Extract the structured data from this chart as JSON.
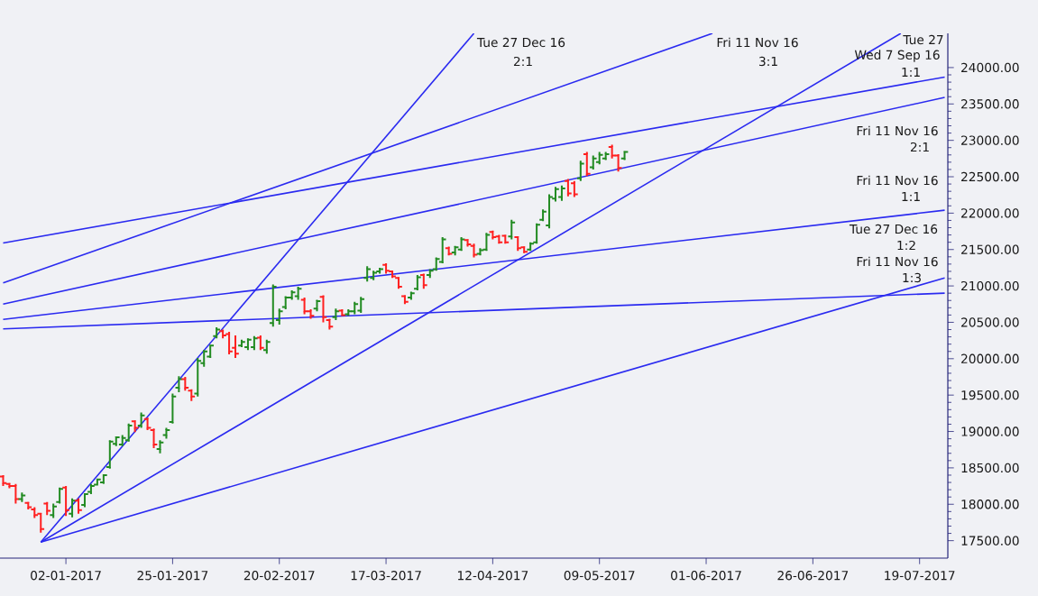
{
  "chart_data": {
    "type": "candlestick",
    "categories": [
      null,
      null,
      null,
      null,
      null,
      null,
      null,
      null,
      null,
      null,
      "02-01-2017",
      null,
      null,
      null,
      null,
      null,
      null,
      null,
      null,
      null,
      null,
      null,
      null,
      null,
      null,
      null,
      null,
      "25-01-2017",
      null,
      null,
      null,
      null,
      null,
      null,
      null,
      null,
      null,
      null,
      null,
      null,
      null,
      null,
      null,
      null,
      "20-02-2017",
      null,
      null,
      null,
      null,
      null,
      null,
      null,
      null,
      null,
      null,
      null,
      null,
      null,
      null,
      null,
      null,
      "17-03-2017",
      null,
      null,
      null,
      null,
      null,
      null,
      null,
      null,
      null,
      null,
      null,
      null,
      null,
      null,
      null,
      null,
      "12-04-2017",
      null,
      null,
      null,
      null,
      null,
      null,
      null,
      null,
      null,
      null,
      null,
      null,
      null,
      null,
      null,
      null,
      "09-05-2017",
      null,
      null,
      null,
      null,
      null,
      null,
      null,
      null,
      null,
      null,
      null,
      null,
      null,
      null,
      null,
      null,
      "01-06-2017",
      null,
      null,
      null,
      null,
      null,
      null,
      null,
      null,
      null,
      null,
      null,
      null,
      null,
      null,
      null,
      null,
      "26-06-2017",
      null,
      null,
      null,
      null,
      null,
      null,
      null,
      null,
      null,
      null,
      null,
      null,
      null,
      null,
      null,
      null,
      "19-07-2017",
      null,
      null,
      null,
      null
    ],
    "ohlc": [
      [
        18380,
        18400,
        18250,
        18290
      ],
      [
        18280,
        18290,
        18220,
        18250
      ],
      [
        18250,
        18280,
        18010,
        18070
      ],
      [
        18070,
        18160,
        18030,
        18120
      ],
      [
        18020,
        18030,
        17930,
        17960
      ],
      [
        17930,
        17960,
        17810,
        17850
      ],
      [
        17870,
        17880,
        17610,
        17660
      ],
      [
        18010,
        18030,
        17850,
        17910
      ],
      [
        17850,
        18010,
        17810,
        17970
      ],
      [
        18030,
        18230,
        18010,
        18210
      ],
      [
        18230,
        18250,
        17840,
        17920
      ],
      [
        17870,
        18080,
        17820,
        18050
      ],
      [
        18050,
        18080,
        17870,
        17920
      ],
      [
        17990,
        18150,
        17960,
        18140
      ],
      [
        18170,
        18280,
        18140,
        18250
      ],
      [
        18270,
        18340,
        18270,
        18340
      ],
      [
        18300,
        18400,
        18280,
        18400
      ],
      [
        18510,
        18880,
        18490,
        18860
      ],
      [
        18830,
        18930,
        18800,
        18920
      ],
      [
        18820,
        18950,
        18800,
        18910
      ],
      [
        18880,
        19110,
        18860,
        19080
      ],
      [
        19140,
        19150,
        18990,
        19050
      ],
      [
        19080,
        19260,
        19050,
        19220
      ],
      [
        19170,
        19190,
        19020,
        19050
      ],
      [
        19020,
        19040,
        18770,
        18820
      ],
      [
        18760,
        18880,
        18700,
        18850
      ],
      [
        18950,
        19050,
        18900,
        19020
      ],
      [
        19130,
        19520,
        19110,
        19480
      ],
      [
        19600,
        19760,
        19540,
        19720
      ],
      [
        19720,
        19750,
        19560,
        19600
      ],
      [
        19560,
        19580,
        19420,
        19480
      ],
      [
        19520,
        20010,
        19480,
        19970
      ],
      [
        19940,
        20120,
        19890,
        20100
      ],
      [
        20030,
        20190,
        20010,
        20180
      ],
      [
        20310,
        20430,
        20280,
        20400
      ],
      [
        20380,
        20400,
        20280,
        20320
      ],
      [
        20340,
        20370,
        20060,
        20100
      ],
      [
        20150,
        20320,
        20010,
        20070
      ],
      [
        20180,
        20260,
        20160,
        20230
      ],
      [
        20160,
        20280,
        20120,
        20260
      ],
      [
        20160,
        20310,
        20120,
        20280
      ],
      [
        20290,
        20320,
        20120,
        20150
      ],
      [
        20120,
        20260,
        20070,
        20230
      ],
      [
        20490,
        21020,
        20440,
        20990
      ],
      [
        20530,
        20690,
        20470,
        20650
      ],
      [
        20710,
        20860,
        20680,
        20840
      ],
      [
        20840,
        20940,
        20810,
        20910
      ],
      [
        20860,
        20990,
        20810,
        20960
      ],
      [
        20810,
        20840,
        20610,
        20650
      ],
      [
        20650,
        20680,
        20550,
        20590
      ],
      [
        20690,
        20810,
        20650,
        20790
      ],
      [
        20850,
        20870,
        20500,
        20570
      ],
      [
        20530,
        20550,
        20400,
        20440
      ],
      [
        20570,
        20690,
        20530,
        20650
      ],
      [
        20660,
        20680,
        20590,
        20600
      ],
      [
        20610,
        20680,
        20590,
        20650
      ],
      [
        20650,
        20780,
        20610,
        20750
      ],
      [
        20660,
        20850,
        20630,
        20820
      ],
      [
        21110,
        21270,
        21060,
        21230
      ],
      [
        21110,
        21210,
        21080,
        21180
      ],
      [
        21200,
        21250,
        21170,
        21230
      ],
      [
        21290,
        21310,
        21170,
        21210
      ],
      [
        21200,
        21210,
        21110,
        21130
      ],
      [
        21110,
        21120,
        20960,
        20990
      ],
      [
        20860,
        20870,
        20750,
        20780
      ],
      [
        20840,
        20920,
        20810,
        20900
      ],
      [
        20960,
        21150,
        20940,
        21120
      ],
      [
        21150,
        21170,
        20960,
        21010
      ],
      [
        21150,
        21230,
        21110,
        21210
      ],
      [
        21230,
        21390,
        21210,
        21370
      ],
      [
        21330,
        21670,
        21310,
        21640
      ],
      [
        21520,
        21540,
        21420,
        21440
      ],
      [
        21460,
        21550,
        21420,
        21530
      ],
      [
        21500,
        21670,
        21480,
        21640
      ],
      [
        21630,
        21640,
        21540,
        21570
      ],
      [
        21550,
        21580,
        21390,
        21430
      ],
      [
        21440,
        21520,
        21420,
        21490
      ],
      [
        21500,
        21730,
        21480,
        21700
      ],
      [
        21740,
        21760,
        21640,
        21670
      ],
      [
        21680,
        21700,
        21580,
        21600
      ],
      [
        21690,
        21700,
        21580,
        21600
      ],
      [
        21680,
        21910,
        21640,
        21870
      ],
      [
        21670,
        21680,
        21480,
        21520
      ],
      [
        21530,
        21540,
        21450,
        21470
      ],
      [
        21500,
        21600,
        21480,
        21580
      ],
      [
        21600,
        21860,
        21580,
        21840
      ],
      [
        21910,
        22050,
        21890,
        22020
      ],
      [
        21830,
        22260,
        21790,
        22220
      ],
      [
        22200,
        22360,
        22160,
        22330
      ],
      [
        22220,
        22380,
        22170,
        22340
      ],
      [
        22440,
        22470,
        22230,
        22270
      ],
      [
        22410,
        22440,
        22220,
        22260
      ],
      [
        22480,
        22720,
        22440,
        22680
      ],
      [
        22810,
        22840,
        22510,
        22540
      ],
      [
        22630,
        22790,
        22600,
        22750
      ],
      [
        22700,
        22840,
        22670,
        22800
      ],
      [
        22750,
        22840,
        22730,
        22810
      ],
      [
        22910,
        22940,
        22750,
        22790
      ],
      [
        22790,
        22810,
        22570,
        22620
      ],
      [
        22750,
        22850,
        22730,
        22840
      ],
      null,
      null,
      null,
      null,
      null,
      null,
      null,
      null,
      null,
      null,
      null,
      null,
      null,
      null,
      null,
      null,
      null,
      null,
      null,
      null,
      null,
      null,
      null,
      null,
      null,
      null,
      null,
      null,
      null,
      null,
      null,
      null,
      null,
      null,
      null,
      null,
      null,
      null,
      null,
      null,
      null,
      null,
      null,
      null,
      null,
      null,
      null,
      null,
      null,
      null,
      null
    ],
    "colors": [
      "#ff2020",
      "#ff2020",
      "#ff2020",
      "#228b22",
      "#ff2020",
      "#ff2020",
      "#ff2020",
      "#ff2020",
      "#228b22",
      "#228b22",
      "#ff2020",
      "#228b22",
      "#ff2020",
      "#228b22",
      "#228b22",
      "#228b22",
      "#228b22",
      "#228b22",
      "#228b22",
      "#228b22",
      "#228b22",
      "#ff2020",
      "#228b22",
      "#ff2020",
      "#ff2020",
      "#228b22",
      "#228b22",
      "#228b22",
      "#228b22",
      "#ff2020",
      "#ff2020",
      "#228b22",
      "#228b22",
      "#228b22",
      "#228b22",
      "#ff2020",
      "#ff2020",
      "#ff2020",
      "#228b22",
      "#228b22",
      "#228b22",
      "#ff2020",
      "#228b22",
      "#228b22",
      "#228b22",
      "#228b22",
      "#228b22",
      "#228b22",
      "#ff2020",
      "#ff2020",
      "#228b22",
      "#ff2020",
      "#ff2020",
      "#228b22",
      "#ff2020",
      "#228b22",
      "#228b22",
      "#228b22",
      "#228b22",
      "#228b22",
      "#228b22",
      "#ff2020",
      "#ff2020",
      "#ff2020",
      "#ff2020",
      "#228b22",
      "#228b22",
      "#ff2020",
      "#228b22",
      "#228b22",
      "#228b22",
      "#ff2020",
      "#228b22",
      "#228b22",
      "#ff2020",
      "#ff2020",
      "#228b22",
      "#228b22",
      "#ff2020",
      "#ff2020",
      "#ff2020",
      "#228b22",
      "#ff2020",
      "#ff2020",
      "#228b22",
      "#228b22",
      "#228b22",
      "#228b22",
      "#228b22",
      "#228b22",
      "#ff2020",
      "#ff2020",
      "#228b22",
      "#ff2020",
      "#228b22",
      "#228b22",
      "#228b22",
      "#ff2020",
      "#ff2020",
      "#228b22",
      null,
      null,
      null,
      null,
      null,
      null,
      null,
      null,
      null,
      null,
      null,
      null,
      null,
      null,
      null,
      null,
      null,
      null,
      null,
      null,
      null,
      null,
      null,
      null,
      null,
      null,
      null,
      null,
      null,
      null,
      null,
      null,
      null,
      null,
      null,
      null,
      null,
      null,
      null,
      null,
      null,
      null,
      null,
      null,
      null,
      null,
      null,
      null,
      null,
      null,
      null
    ],
    "series": [
      {
        "type": "line",
        "color": "#2a2af0",
        "values": [
          null,
          null,
          null,
          null,
          null,
          null,
          17480,
          null,
          null,
          null,
          null,
          null,
          null,
          null,
          null,
          null,
          null,
          null,
          null,
          null,
          null,
          null,
          null,
          null,
          null,
          null,
          null,
          null,
          null,
          null,
          null,
          null,
          null,
          null,
          null,
          null,
          null,
          null,
          null,
          null,
          null,
          null,
          null,
          null,
          null,
          null,
          null,
          null,
          null,
          null,
          null,
          null,
          null,
          null,
          null,
          null,
          null,
          null,
          null,
          null,
          null,
          null,
          null,
          null,
          null,
          null,
          null,
          null,
          null,
          null,
          null,
          null,
          null,
          null,
          null,
          24470,
          null,
          null,
          null,
          null,
          null,
          null,
          null,
          null,
          null,
          null,
          null,
          null,
          null,
          null,
          null,
          null,
          null,
          null,
          null,
          null,
          null,
          null,
          null,
          null,
          null,
          null,
          null,
          null,
          null,
          null,
          null,
          null,
          null,
          null,
          null,
          null,
          null,
          null,
          null,
          null,
          null,
          null,
          null,
          null,
          null,
          null,
          null,
          null,
          null,
          null,
          null,
          null,
          null,
          null,
          null,
          null,
          null,
          null,
          null,
          null,
          null,
          null,
          null,
          null,
          null,
          null,
          null,
          null,
          null,
          null,
          null,
          null,
          null,
          null,
          null
        ]
      },
      {
        "type": "line",
        "color": "#2a2af0",
        "values": [
          null,
          null,
          null,
          null,
          null,
          null,
          17480,
          null,
          null,
          null,
          null,
          null,
          null,
          null,
          null,
          null,
          null,
          null,
          null,
          null,
          null,
          null,
          null,
          null,
          null,
          null,
          null,
          null,
          null,
          null,
          null,
          null,
          null,
          null,
          null,
          null,
          null,
          null,
          null,
          null,
          null,
          null,
          null,
          null,
          null,
          null,
          null,
          null,
          null,
          null,
          null,
          null,
          null,
          null,
          null,
          null,
          null,
          null,
          null,
          null,
          null,
          null,
          null,
          null,
          null,
          null,
          null,
          null,
          null,
          null,
          null,
          null,
          null,
          null,
          null,
          null,
          null,
          null,
          null,
          null,
          null,
          null,
          null,
          null,
          null,
          null,
          null,
          null,
          null,
          null,
          null,
          null,
          null,
          null,
          null,
          null,
          null,
          null,
          null,
          null,
          null,
          null,
          null,
          null,
          null,
          null,
          null,
          null,
          null,
          null,
          null,
          null,
          null,
          null,
          null,
          null,
          null,
          null,
          null,
          null,
          null,
          null,
          null,
          null,
          null,
          null,
          null,
          null,
          null,
          null,
          null,
          null,
          null,
          null,
          null,
          null,
          null,
          null,
          null,
          null,
          null,
          null,
          null,
          24470,
          null,
          null,
          null,
          null,
          null,
          null,
          null
        ]
      },
      {
        "type": "line",
        "color": "#2a2af0",
        "values": [
          null,
          null,
          null,
          null,
          null,
          null,
          17480,
          null,
          null,
          null,
          null,
          null,
          null,
          null,
          null,
          null,
          null,
          null,
          null,
          null,
          null,
          null,
          null,
          null,
          null,
          null,
          null,
          null,
          null,
          null,
          null,
          null,
          null,
          null,
          null,
          null,
          null,
          null,
          null,
          null,
          null,
          null,
          null,
          null,
          null,
          null,
          null,
          null,
          null,
          null,
          null,
          null,
          null,
          null,
          null,
          null,
          null,
          null,
          null,
          null,
          null,
          null,
          null,
          null,
          null,
          null,
          null,
          null,
          null,
          null,
          null,
          null,
          null,
          null,
          null,
          null,
          null,
          null,
          null,
          null,
          null,
          null,
          null,
          null,
          null,
          null,
          null,
          null,
          null,
          null,
          null,
          null,
          null,
          null,
          null,
          null,
          null,
          null,
          null,
          null,
          null,
          null,
          null,
          null,
          null,
          null,
          null,
          null,
          null,
          null,
          null,
          null,
          null,
          null,
          null,
          null,
          null,
          null,
          null,
          null,
          null,
          null,
          null,
          null,
          null,
          null,
          null,
          null,
          null,
          null,
          null,
          null,
          null,
          null,
          null,
          null,
          null,
          null,
          null,
          null,
          null,
          null,
          null,
          null,
          null,
          null,
          null,
          null,
          null,
          null,
          21110
        ]
      },
      {
        "type": "line",
        "color": "#2a2af0",
        "values": [
          21040,
          null,
          null,
          null,
          null,
          null,
          null,
          null,
          null,
          null,
          null,
          null,
          null,
          null,
          null,
          null,
          null,
          null,
          null,
          null,
          null,
          null,
          null,
          null,
          null,
          null,
          null,
          null,
          null,
          null,
          null,
          null,
          null,
          null,
          null,
          null,
          null,
          null,
          null,
          null,
          null,
          null,
          null,
          null,
          null,
          null,
          null,
          null,
          null,
          null,
          null,
          null,
          null,
          null,
          null,
          null,
          null,
          null,
          null,
          null,
          null,
          null,
          null,
          null,
          null,
          null,
          null,
          null,
          null,
          null,
          null,
          null,
          null,
          null,
          null,
          null,
          null,
          null,
          null,
          null,
          null,
          null,
          null,
          null,
          null,
          null,
          null,
          null,
          null,
          null,
          null,
          null,
          null,
          null,
          null,
          null,
          null,
          null,
          null,
          null,
          null,
          null,
          null,
          null,
          null,
          null,
          null,
          null,
          null,
          null,
          null,
          null,
          null,
          24470,
          null,
          null,
          null,
          null,
          null,
          null,
          null,
          null,
          null,
          null,
          null,
          null,
          null,
          null,
          null,
          null,
          null,
          null,
          null,
          null,
          null,
          null,
          null,
          null,
          null,
          null,
          null,
          null,
          null,
          null,
          null,
          null,
          null,
          null,
          null,
          null,
          null
        ]
      },
      {
        "type": "line",
        "color": "#2a2af0",
        "values": [
          21590,
          null,
          null,
          null,
          null,
          null,
          null,
          null,
          null,
          null,
          null,
          null,
          null,
          null,
          null,
          null,
          null,
          null,
          null,
          null,
          null,
          null,
          null,
          null,
          null,
          null,
          null,
          null,
          null,
          null,
          null,
          null,
          null,
          null,
          null,
          null,
          null,
          null,
          null,
          null,
          null,
          null,
          null,
          null,
          null,
          null,
          null,
          null,
          null,
          null,
          null,
          null,
          null,
          null,
          null,
          null,
          null,
          null,
          null,
          null,
          null,
          null,
          null,
          null,
          null,
          null,
          null,
          null,
          null,
          null,
          null,
          null,
          null,
          null,
          null,
          null,
          null,
          null,
          null,
          null,
          null,
          null,
          null,
          null,
          null,
          null,
          null,
          null,
          null,
          null,
          null,
          null,
          null,
          null,
          null,
          null,
          null,
          null,
          null,
          null,
          null,
          null,
          null,
          null,
          null,
          null,
          null,
          null,
          null,
          null,
          null,
          null,
          null,
          null,
          null,
          null,
          null,
          null,
          null,
          null,
          null,
          null,
          null,
          null,
          null,
          null,
          null,
          null,
          null,
          null,
          null,
          null,
          null,
          null,
          null,
          null,
          null,
          null,
          null,
          null,
          null,
          null,
          null,
          null,
          null,
          null,
          null,
          null,
          null,
          null,
          23870
        ]
      },
      {
        "type": "line",
        "color": "#2a2af0",
        "values": [
          20750,
          null,
          null,
          null,
          null,
          null,
          null,
          null,
          null,
          null,
          null,
          null,
          null,
          null,
          null,
          null,
          null,
          null,
          null,
          null,
          null,
          null,
          null,
          null,
          null,
          null,
          null,
          null,
          null,
          null,
          null,
          null,
          null,
          null,
          null,
          null,
          null,
          null,
          null,
          null,
          null,
          null,
          null,
          null,
          null,
          null,
          null,
          null,
          null,
          null,
          null,
          null,
          null,
          null,
          null,
          null,
          null,
          null,
          null,
          null,
          null,
          null,
          null,
          null,
          null,
          null,
          null,
          null,
          null,
          null,
          null,
          null,
          null,
          null,
          null,
          null,
          null,
          null,
          null,
          null,
          null,
          null,
          null,
          null,
          null,
          null,
          null,
          null,
          null,
          null,
          null,
          null,
          null,
          null,
          null,
          null,
          null,
          null,
          null,
          null,
          null,
          null,
          null,
          null,
          null,
          null,
          null,
          null,
          null,
          null,
          null,
          null,
          null,
          null,
          null,
          null,
          null,
          null,
          null,
          null,
          null,
          null,
          null,
          null,
          null,
          null,
          null,
          null,
          null,
          null,
          null,
          null,
          null,
          null,
          null,
          null,
          null,
          null,
          null,
          null,
          null,
          null,
          null,
          null,
          null,
          null,
          null,
          null,
          null,
          null,
          23590
        ]
      },
      {
        "type": "line",
        "color": "#2a2af0",
        "values": [
          20540,
          null,
          null,
          null,
          null,
          null,
          null,
          null,
          null,
          null,
          null,
          null,
          null,
          null,
          null,
          null,
          null,
          null,
          null,
          null,
          null,
          null,
          null,
          null,
          null,
          null,
          null,
          null,
          null,
          null,
          null,
          null,
          null,
          null,
          null,
          null,
          null,
          null,
          null,
          null,
          null,
          null,
          null,
          null,
          null,
          null,
          null,
          null,
          null,
          null,
          null,
          null,
          null,
          null,
          null,
          null,
          null,
          null,
          null,
          null,
          null,
          null,
          null,
          null,
          null,
          null,
          null,
          null,
          null,
          null,
          null,
          null,
          null,
          null,
          null,
          null,
          null,
          null,
          null,
          null,
          null,
          null,
          null,
          null,
          null,
          null,
          null,
          null,
          null,
          null,
          null,
          null,
          null,
          null,
          null,
          null,
          null,
          null,
          null,
          null,
          null,
          null,
          null,
          null,
          null,
          null,
          null,
          null,
          null,
          null,
          null,
          null,
          null,
          null,
          null,
          null,
          null,
          null,
          null,
          null,
          null,
          null,
          null,
          null,
          null,
          null,
          null,
          null,
          null,
          null,
          null,
          null,
          null,
          null,
          null,
          null,
          null,
          null,
          null,
          null,
          null,
          null,
          null,
          null,
          null,
          null,
          null,
          null,
          null,
          null,
          22040
        ]
      },
      {
        "type": "line",
        "color": "#2a2af0",
        "values": [
          20410,
          null,
          null,
          null,
          null,
          null,
          null,
          null,
          null,
          null,
          null,
          null,
          null,
          null,
          null,
          null,
          null,
          null,
          null,
          null,
          null,
          null,
          null,
          null,
          null,
          null,
          null,
          null,
          null,
          null,
          null,
          null,
          null,
          null,
          null,
          null,
          null,
          null,
          null,
          null,
          null,
          null,
          null,
          null,
          null,
          null,
          null,
          null,
          null,
          null,
          null,
          null,
          null,
          null,
          null,
          null,
          null,
          null,
          null,
          null,
          null,
          null,
          null,
          null,
          null,
          null,
          null,
          null,
          null,
          null,
          null,
          null,
          null,
          null,
          null,
          null,
          null,
          null,
          null,
          null,
          null,
          null,
          null,
          null,
          null,
          null,
          null,
          null,
          null,
          null,
          null,
          null,
          null,
          null,
          null,
          null,
          null,
          null,
          null,
          null,
          null,
          null,
          null,
          null,
          null,
          null,
          null,
          null,
          null,
          null,
          null,
          null,
          null,
          null,
          null,
          null,
          null,
          null,
          null,
          null,
          null,
          null,
          null,
          null,
          null,
          null,
          null,
          null,
          null,
          null,
          null,
          null,
          null,
          null,
          null,
          null,
          null,
          null,
          null,
          null,
          null,
          null,
          null,
          null,
          null,
          null,
          null,
          null,
          null,
          null,
          20900
        ]
      }
    ],
    "ylim": [
      17260,
      24470
    ],
    "yticks": [
      {
        "value": 17500,
        "label": "17500.00"
      },
      {
        "value": 18000,
        "label": "18000.00"
      },
      {
        "value": 18500,
        "label": "18500.00"
      },
      {
        "value": 19000,
        "label": "19000.00"
      },
      {
        "value": 19500,
        "label": "19500.00"
      },
      {
        "value": 20000,
        "label": "20000.00"
      },
      {
        "value": 20500,
        "label": "20500.00"
      },
      {
        "value": 21000,
        "label": "21000.00"
      },
      {
        "value": 21500,
        "label": "21500.00"
      },
      {
        "value": 22000,
        "label": "22000.00"
      },
      {
        "value": 22500,
        "label": "22500.00"
      },
      {
        "value": 23000,
        "label": "23000.00"
      },
      {
        "value": 23500,
        "label": "23500.00"
      },
      {
        "value": 24000,
        "label": "24000.00"
      }
    ],
    "annotations": [
      "Tue 27 Dec 16",
      "2:1",
      "Fri 11 Nov 16",
      "3:1",
      "Tue 27",
      "Wed 7 Sep 16",
      "1:1",
      "Fri 11 Nov 16",
      "2:1",
      "Fri 11 Nov 16",
      "1:1",
      "Tue 27 Dec 16",
      "1:2",
      "Fri 11 Nov 16",
      "1:3"
    ]
  }
}
